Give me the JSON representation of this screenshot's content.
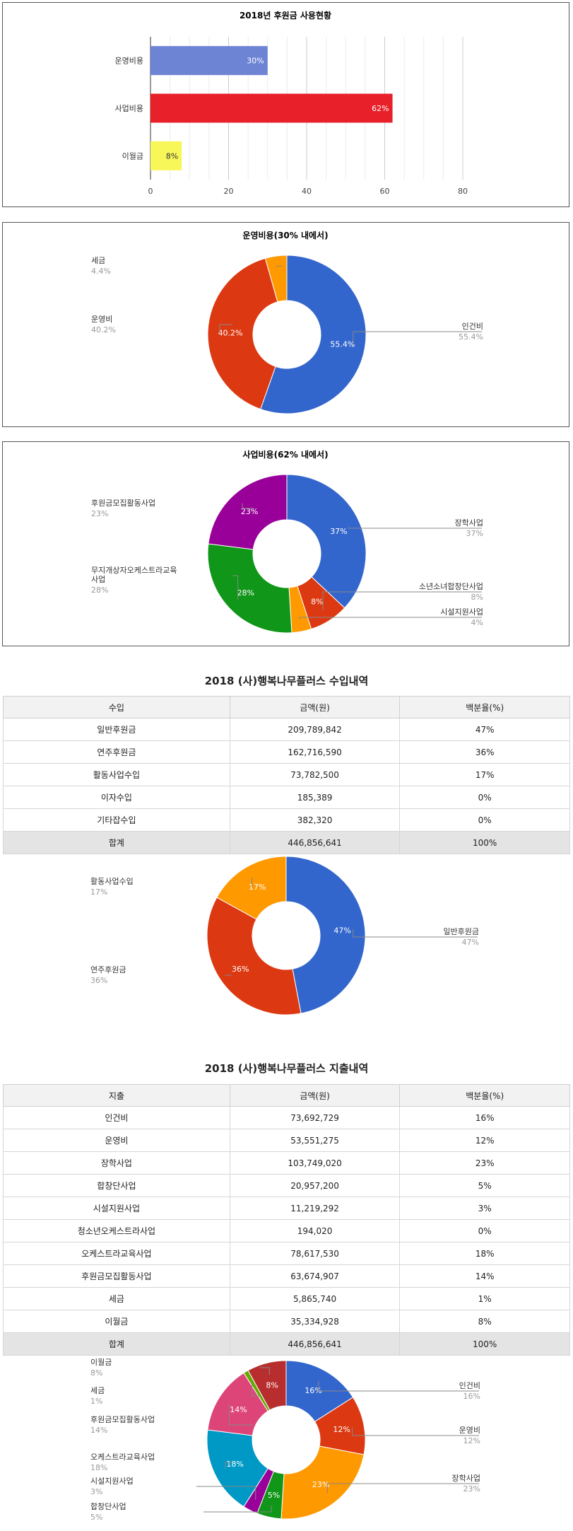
{
  "usage_chart": {
    "title": "2018년 후원금 사용현황",
    "chart_data": {
      "type": "bar",
      "categories": [
        "운영비용",
        "사업비용",
        "이월금"
      ],
      "values": [
        30,
        62,
        8
      ],
      "data_labels": [
        "30%",
        "62%",
        "8%"
      ],
      "colors": [
        "#6d84d4",
        "#e8202a",
        "#f7f75a"
      ],
      "xlim": [
        0,
        80
      ],
      "xticks": [
        "0",
        "20",
        "40",
        "60",
        "80"
      ],
      "grid": true
    }
  },
  "operating_chart": {
    "title": "운영비용(30% 내에서)",
    "chart_data": {
      "type": "pie",
      "donut": true,
      "slices": [
        {
          "label": "인건비",
          "value": 55.4,
          "pct": "55.4%",
          "color": "#3366cc"
        },
        {
          "label": "운영비",
          "value": 40.2,
          "pct": "40.2%",
          "color": "#dc3912"
        },
        {
          "label": "세금",
          "value": 4.4,
          "pct": "4.4%",
          "color": "#ff9900"
        }
      ]
    }
  },
  "business_chart": {
    "title": "사업비용(62% 내에서)",
    "chart_data": {
      "type": "pie",
      "donut": true,
      "slices": [
        {
          "label": "장학사업",
          "value": 37,
          "pct": "37%",
          "color": "#3366cc"
        },
        {
          "label": "소년소녀합창단사업",
          "value": 8,
          "pct": "8%",
          "color": "#dc3912"
        },
        {
          "label": "시설지원사업",
          "value": 4,
          "pct": "4%",
          "color": "#ff9900"
        },
        {
          "label": "무지개상자오케스트라교육사업",
          "value": 28,
          "pct": "28%",
          "color": "#109618"
        },
        {
          "label": "후원금모집활동사업",
          "value": 23,
          "pct": "23%",
          "color": "#990099"
        }
      ]
    }
  },
  "income": {
    "title": "2018 (사)행복나무플러스 수입내역",
    "headers": [
      "수입",
      "금액(원)",
      "백분율(%)"
    ],
    "rows": [
      [
        "일반후원금",
        "209,789,842",
        "47%"
      ],
      [
        "연주후원금",
        "162,716,590",
        "36%"
      ],
      [
        "활동사업수입",
        "73,782,500",
        "17%"
      ],
      [
        "이자수입",
        "185,389",
        "0%"
      ],
      [
        "기타잡수입",
        "382,320",
        "0%"
      ]
    ],
    "total": [
      "합계",
      "446,856,641",
      "100%"
    ],
    "chart_data": {
      "type": "pie",
      "donut": true,
      "slices": [
        {
          "label": "일반후원금",
          "value": 47,
          "pct": "47%",
          "color": "#3366cc"
        },
        {
          "label": "연주후원금",
          "value": 36,
          "pct": "36%",
          "color": "#dc3912"
        },
        {
          "label": "활동사업수입",
          "value": 17,
          "pct": "17%",
          "color": "#ff9900"
        }
      ]
    }
  },
  "expense": {
    "title": "2018 (사)행복나무플러스 지출내역",
    "headers": [
      "지출",
      "금액(원)",
      "백분율(%)"
    ],
    "rows": [
      [
        "인건비",
        "73,692,729",
        "16%"
      ],
      [
        "운영비",
        "53,551,275",
        "12%"
      ],
      [
        "장학사업",
        "103,749,020",
        "23%"
      ],
      [
        "합창단사업",
        "20,957,200",
        "5%"
      ],
      [
        "시설지원사업",
        "11,219,292",
        "3%"
      ],
      [
        "청소년오케스트라사업",
        "194,020",
        "0%"
      ],
      [
        "오케스트라교육사업",
        "78,617,530",
        "18%"
      ],
      [
        "후원금모집활동사업",
        "63,674,907",
        "14%"
      ],
      [
        "세금",
        "5,865,740",
        "1%"
      ],
      [
        "이월금",
        "35,334,928",
        "8%"
      ]
    ],
    "total": [
      "합계",
      "446,856,641",
      "100%"
    ],
    "chart_data": {
      "type": "pie",
      "donut": true,
      "slices": [
        {
          "label": "인건비",
          "value": 16,
          "pct": "16%",
          "color": "#3366cc"
        },
        {
          "label": "운영비",
          "value": 12,
          "pct": "12%",
          "color": "#dc3912"
        },
        {
          "label": "장학사업",
          "value": 23,
          "pct": "23%",
          "color": "#ff9900"
        },
        {
          "label": "합창단사업",
          "value": 5,
          "pct": "5%",
          "color": "#109618"
        },
        {
          "label": "시설지원사업",
          "value": 3,
          "pct": "3%",
          "color": "#990099"
        },
        {
          "label": "오케스트라교육사업",
          "value": 18,
          "pct": "18%",
          "color": "#0099c6"
        },
        {
          "label": "후원금모집활동사업",
          "value": 14,
          "pct": "14%",
          "color": "#dd4477"
        },
        {
          "label": "세금",
          "value": 1,
          "pct": "1%",
          "color": "#66aa00"
        },
        {
          "label": "이월금",
          "value": 8,
          "pct": "8%",
          "color": "#b82e2e"
        }
      ]
    }
  }
}
